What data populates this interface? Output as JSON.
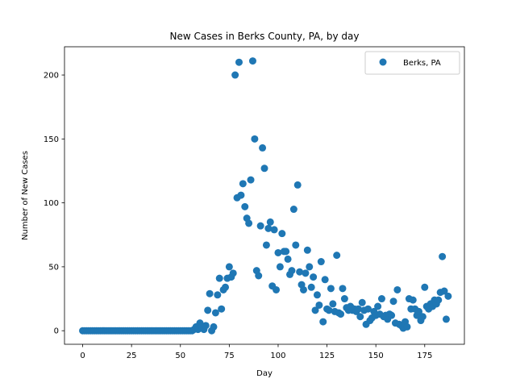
{
  "chart_data": {
    "type": "scatter",
    "title": "New Cases in Berks County, PA, by day",
    "xlabel": "Day",
    "ylabel": "Number of New Cases",
    "xlim": [
      -9.3,
      195.3
    ],
    "ylim": [
      -10.6,
      222.1
    ],
    "xticks": [
      0,
      25,
      50,
      75,
      100,
      125,
      150,
      175
    ],
    "yticks": [
      0,
      50,
      100,
      150,
      200
    ],
    "grid": false,
    "legend_position": "top-right",
    "colors": {
      "series": "#1f77b4"
    },
    "series": [
      {
        "name": "Berks, PA",
        "points": [
          [
            0,
            0
          ],
          [
            1,
            0
          ],
          [
            2,
            0
          ],
          [
            3,
            0
          ],
          [
            4,
            0
          ],
          [
            5,
            0
          ],
          [
            6,
            0
          ],
          [
            7,
            0
          ],
          [
            8,
            0
          ],
          [
            9,
            0
          ],
          [
            10,
            0
          ],
          [
            11,
            0
          ],
          [
            12,
            0
          ],
          [
            13,
            0
          ],
          [
            14,
            0
          ],
          [
            15,
            0
          ],
          [
            16,
            0
          ],
          [
            17,
            0
          ],
          [
            18,
            0
          ],
          [
            19,
            0
          ],
          [
            20,
            0
          ],
          [
            21,
            0
          ],
          [
            22,
            0
          ],
          [
            23,
            0
          ],
          [
            24,
            0
          ],
          [
            25,
            0
          ],
          [
            26,
            0
          ],
          [
            27,
            0
          ],
          [
            28,
            0
          ],
          [
            29,
            0
          ],
          [
            30,
            0
          ],
          [
            31,
            0
          ],
          [
            32,
            0
          ],
          [
            33,
            0
          ],
          [
            34,
            0
          ],
          [
            35,
            0
          ],
          [
            36,
            0
          ],
          [
            37,
            0
          ],
          [
            38,
            0
          ],
          [
            39,
            0
          ],
          [
            40,
            0
          ],
          [
            41,
            0
          ],
          [
            42,
            0
          ],
          [
            43,
            0
          ],
          [
            44,
            0
          ],
          [
            45,
            0
          ],
          [
            46,
            0
          ],
          [
            47,
            0
          ],
          [
            48,
            0
          ],
          [
            49,
            0
          ],
          [
            50,
            0
          ],
          [
            51,
            0
          ],
          [
            52,
            0
          ],
          [
            53,
            0
          ],
          [
            54,
            0
          ],
          [
            55,
            0
          ],
          [
            56,
            0
          ],
          [
            57,
            1
          ],
          [
            58,
            3
          ],
          [
            59,
            1
          ],
          [
            60,
            6
          ],
          [
            61,
            3
          ],
          [
            62,
            1
          ],
          [
            63,
            4
          ],
          [
            64,
            16
          ],
          [
            65,
            29
          ],
          [
            66,
            0
          ],
          [
            67,
            3
          ],
          [
            68,
            14
          ],
          [
            69,
            28
          ],
          [
            70,
            41
          ],
          [
            71,
            17
          ],
          [
            72,
            32
          ],
          [
            73,
            34
          ],
          [
            74,
            41
          ],
          [
            75,
            50
          ],
          [
            76,
            42
          ],
          [
            77,
            45
          ],
          [
            78,
            200
          ],
          [
            79,
            104
          ],
          [
            80,
            210
          ],
          [
            81,
            106
          ],
          [
            82,
            115
          ],
          [
            83,
            97
          ],
          [
            84,
            88
          ],
          [
            85,
            84
          ],
          [
            86,
            118
          ],
          [
            87,
            211
          ],
          [
            88,
            150
          ],
          [
            89,
            47
          ],
          [
            90,
            43
          ],
          [
            91,
            82
          ],
          [
            92,
            143
          ],
          [
            93,
            127
          ],
          [
            94,
            67
          ],
          [
            95,
            80
          ],
          [
            96,
            85
          ],
          [
            97,
            35
          ],
          [
            98,
            79
          ],
          [
            99,
            32
          ],
          [
            100,
            61
          ],
          [
            101,
            50
          ],
          [
            102,
            76
          ],
          [
            103,
            62
          ],
          [
            104,
            62
          ],
          [
            105,
            56
          ],
          [
            106,
            44
          ],
          [
            107,
            47
          ],
          [
            108,
            95
          ],
          [
            109,
            67
          ],
          [
            110,
            114
          ],
          [
            111,
            46
          ],
          [
            112,
            36
          ],
          [
            113,
            32
          ],
          [
            114,
            45
          ],
          [
            115,
            63
          ],
          [
            116,
            50
          ],
          [
            117,
            34
          ],
          [
            118,
            42
          ],
          [
            119,
            16
          ],
          [
            120,
            28
          ],
          [
            121,
            20
          ],
          [
            122,
            54
          ],
          [
            123,
            7
          ],
          [
            124,
            40
          ],
          [
            125,
            17
          ],
          [
            126,
            16
          ],
          [
            127,
            33
          ],
          [
            128,
            21
          ],
          [
            129,
            15
          ],
          [
            130,
            59
          ],
          [
            131,
            14
          ],
          [
            132,
            13
          ],
          [
            133,
            33
          ],
          [
            134,
            25
          ],
          [
            135,
            18
          ],
          [
            136,
            16
          ],
          [
            137,
            19
          ],
          [
            138,
            16
          ],
          [
            139,
            17
          ],
          [
            140,
            15
          ],
          [
            141,
            17
          ],
          [
            142,
            11
          ],
          [
            143,
            22
          ],
          [
            144,
            16
          ],
          [
            145,
            5
          ],
          [
            146,
            17
          ],
          [
            147,
            8
          ],
          [
            148,
            10
          ],
          [
            149,
            15
          ],
          [
            150,
            12
          ],
          [
            151,
            19
          ],
          [
            152,
            13
          ],
          [
            153,
            25
          ],
          [
            154,
            11
          ],
          [
            155,
            12
          ],
          [
            156,
            9
          ],
          [
            157,
            13
          ],
          [
            158,
            12
          ],
          [
            159,
            23
          ],
          [
            160,
            6
          ],
          [
            161,
            32
          ],
          [
            162,
            5
          ],
          [
            163,
            4
          ],
          [
            164,
            2
          ],
          [
            165,
            7
          ],
          [
            166,
            3
          ],
          [
            167,
            25
          ],
          [
            168,
            17
          ],
          [
            169,
            24
          ],
          [
            170,
            17
          ],
          [
            171,
            12
          ],
          [
            172,
            15
          ],
          [
            173,
            8
          ],
          [
            174,
            11
          ],
          [
            175,
            34
          ],
          [
            176,
            19
          ],
          [
            177,
            17
          ],
          [
            178,
            21
          ],
          [
            179,
            19
          ],
          [
            180,
            24
          ],
          [
            181,
            21
          ],
          [
            182,
            24
          ],
          [
            183,
            30
          ],
          [
            184,
            58
          ],
          [
            185,
            31
          ],
          [
            186,
            9
          ],
          [
            187,
            27
          ]
        ]
      }
    ]
  }
}
